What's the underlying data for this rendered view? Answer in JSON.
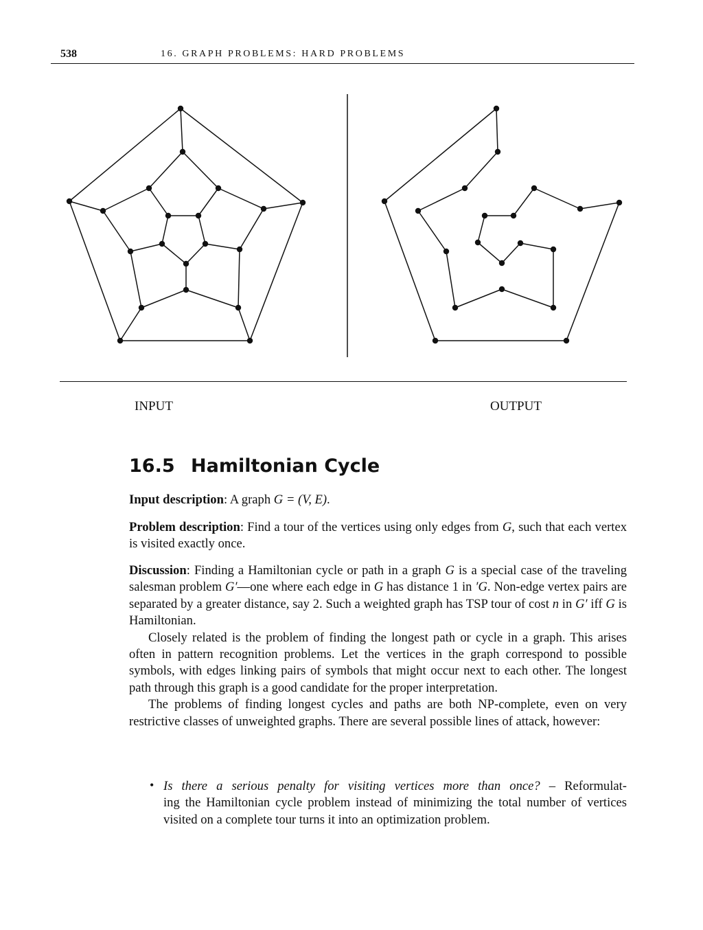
{
  "header": {
    "page_number": "538",
    "running_title": "16. GRAPH PROBLEMS: HARD PROBLEMS"
  },
  "figure": {
    "input_caption": "INPUT",
    "output_caption": "OUTPUT"
  },
  "section": {
    "number": "16.5",
    "title": "Hamiltonian Cycle"
  },
  "paragraphs": {
    "input_label": "Input description",
    "input_text_a": ": A graph ",
    "input_math": "G = (V, E)",
    "input_text_b": ".",
    "problem_label": "Problem description",
    "problem_text_a": ": Find a tour of the vertices using only edges from ",
    "problem_math": "G",
    "problem_text_b": ", such that each vertex is visited exactly once.",
    "discussion_label": "Discussion",
    "discussion_text_a": ": Finding a Hamiltonian cycle or path in a graph ",
    "discussion_math_1": "G",
    "discussion_text_b": " is a special case of the traveling salesman problem ",
    "discussion_math_2": "G′",
    "discussion_text_c": "—one where each edge in ",
    "discussion_math_3": "G",
    "discussion_text_d": " has distance 1 in ",
    "discussion_math_4": "′G",
    "discussion_text_e": ". Non-edge vertex pairs are separated by a greater distance, say 2. Such a weighted graph has TSP tour of cost ",
    "discussion_math_5": "n",
    "discussion_text_f": " in ",
    "discussion_math_6": "G′",
    "discussion_text_g": " iff ",
    "discussion_math_7": "G",
    "discussion_text_h": " is Hamiltonian.",
    "related": "Closely related is the problem of finding the longest path or cycle in a graph. This arises often in pattern recognition problems. Let the vertices in the graph correspond to possible symbols, with edges linking pairs of symbols that might occur next to each other. The longest path through this graph is a good candidate for the proper interpretation.",
    "npcomplete": "The problems of finding longest cycles and paths are both NP-complete, even on very restrictive classes of unweighted graphs. There are several possible lines of attack, however:"
  },
  "bullets": [
    {
      "marker": "•",
      "question": "Is there a serious penalty for visiting vertices more than once?",
      "dash": " – ",
      "text_line1": "Reformulat-",
      "text_rest": "ing the Hamiltonian cycle problem instead of minimizing the total number of vertices visited on a complete tour turns it into an optimization problem."
    }
  ]
}
